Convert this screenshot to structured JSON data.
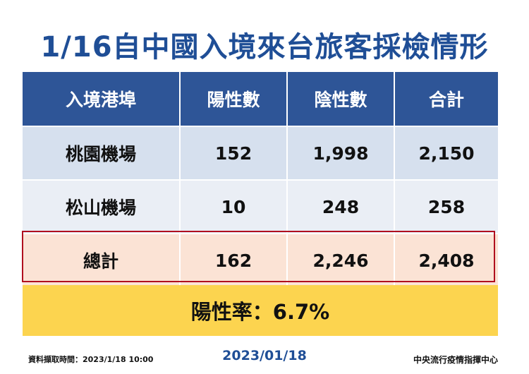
{
  "title": "1/16自中國入境來台旅客採檢情形",
  "table": {
    "headers": [
      "入境港埠",
      "陽性數",
      "陰性數",
      "合計"
    ],
    "rows": [
      [
        "桃園機場",
        "152",
        "1,998",
        "2,150"
      ],
      [
        "松山機場",
        "10",
        "248",
        "258"
      ],
      [
        "總計",
        "162",
        "2,246",
        "2,408"
      ]
    ]
  },
  "positivity_rate": "陽性率：6.7%",
  "footer": {
    "data_time": "資料擷取時間：2023/1/18 10:00",
    "date": "2023/01/18",
    "agency": "中央流行疫情指揮中心"
  },
  "colors": {
    "title": "#1f4e96",
    "header_bg": "#2e5597",
    "row1_bg": "#d6e0ee",
    "row2_bg": "#eaeef5",
    "total_bg": "#fbe3d5",
    "total_border": "#b00f1f",
    "rate_bg": "#fcd44f"
  }
}
